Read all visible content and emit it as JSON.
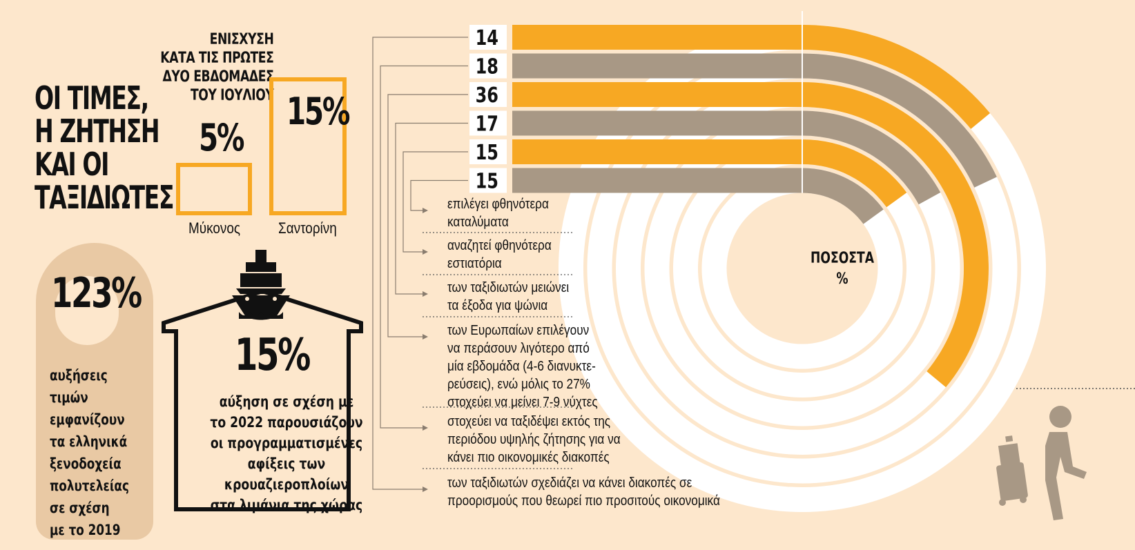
{
  "title": "ΟΙ ΤΙΜΕΣ,\nΗ ΖΗΤΗΣΗ\nΚΑΙ ΟΙ\nΤΑΞΙΔΙΩΤΕΣ",
  "boost": {
    "label": "ΕΝΙΣΧΥΣΗ\nΚΑΤΑ ΤΙΣ ΠΡΩΤΕΣ\nΔΥΟ ΕΒΔΟΜΑΔΕΣ\nΤΟΥ ΙΟΥΛΙΟΥ",
    "mykonos": {
      "name": "Μύκονος",
      "value": "5%"
    },
    "santorini": {
      "name": "Σαντορίνη",
      "value": "15%"
    }
  },
  "hotels": {
    "value": "123%",
    "text": "αυξήσεις τιμών\nεμφανίζουν\nτα ελληνικά\nξενοδοχεία\nπολυτελείας\nσε σχέση\nμε το 2019"
  },
  "cruise": {
    "value": "15%",
    "text": "αύξηση σε σχέση με\nτο 2022 παρουσιάζουν\nοι προγραμματισμένες\nαφίξεις των\nκρουαζιεροπλοίων\nστα λιμάνια της χώρας"
  },
  "chart_data": {
    "type": "radial-bar",
    "center_label": "ΠΟΣΟΣΤΑ\n%",
    "colors": {
      "orange": "#f7a823",
      "gray": "#a89885",
      "track": "#ffffff"
    },
    "items": [
      {
        "value": 14,
        "label": "των ταξιδιωτών σχεδιάζει να κάνει διακοπές σε\nπροορισμούς που θεωρεί πιο προσιτούς οικονομικά",
        "color": "orange"
      },
      {
        "value": 18,
        "label": "στοχεύει να ταξιδέψει εκτός της\nπεριόδου υψηλής ζήτησης για να\nκάνει πιο οικονομικές διακοπές",
        "color": "gray"
      },
      {
        "value": 36,
        "label": "των Ευρωπαίων επιλέγουν\nνα περάσουν λιγότερο από\nμία εβδομάδα (4-6 διανυκτε-\nρεύσεις), ενώ μόλις το 27%\nστοχεύει να μείνει 7-9 νύχτες",
        "color": "orange"
      },
      {
        "value": 17,
        "label": "των ταξιδιωτών μειώνει\nτα έξοδα για ψώνια",
        "color": "gray"
      },
      {
        "value": 15,
        "label": "αναζητεί φθηνότερα\nεστιατόρια",
        "color": "orange"
      },
      {
        "value": 15,
        "label": "επιλέγει φθηνότερα\nκαταλύματα",
        "color": "gray"
      }
    ]
  }
}
